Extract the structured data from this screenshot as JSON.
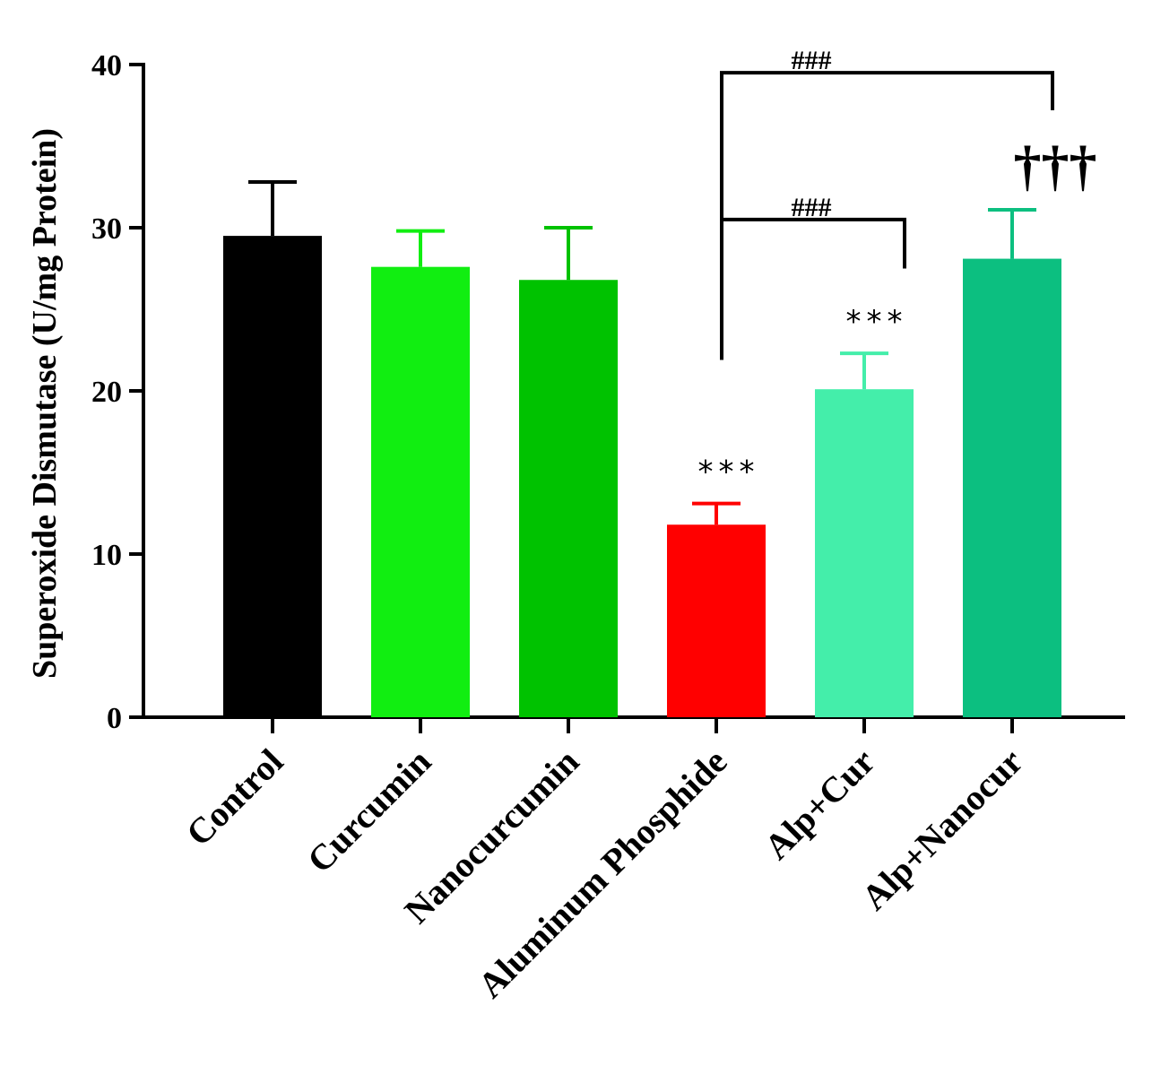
{
  "chart_data": {
    "type": "bar",
    "title": "",
    "xlabel": "",
    "ylabel": "Superoxide Dismutase (U/mg Protein)",
    "ylim": [
      0,
      40
    ],
    "yticks": [
      "0",
      "10",
      "20",
      "30",
      "40"
    ],
    "categories": [
      "Control",
      "Curcumin",
      "Nanocurcumin",
      "Aluminum Phosphide",
      "Alp+Cur",
      "Alp+Nanocur"
    ],
    "values": [
      29.5,
      27.6,
      26.8,
      11.8,
      20.1,
      28.1
    ],
    "errors": [
      3.3,
      2.2,
      3.2,
      1.3,
      2.2,
      3.0
    ],
    "colors": [
      "#000000",
      "#11ee11",
      "#00c200",
      "#ff0000",
      "#44eeaa",
      "#0cbf80"
    ],
    "significance_above_bar": [
      {
        "category_index": 3,
        "text": "***"
      },
      {
        "category_index": 4,
        "text": "***"
      },
      {
        "category_index": 5,
        "text": "†††"
      }
    ],
    "comparison_brackets": [
      {
        "from_index": 3,
        "to_index": 4,
        "label": "###",
        "y": 30.5
      },
      {
        "from_index": 3,
        "to_index": 5,
        "label": "###",
        "y": 39.5
      }
    ]
  }
}
